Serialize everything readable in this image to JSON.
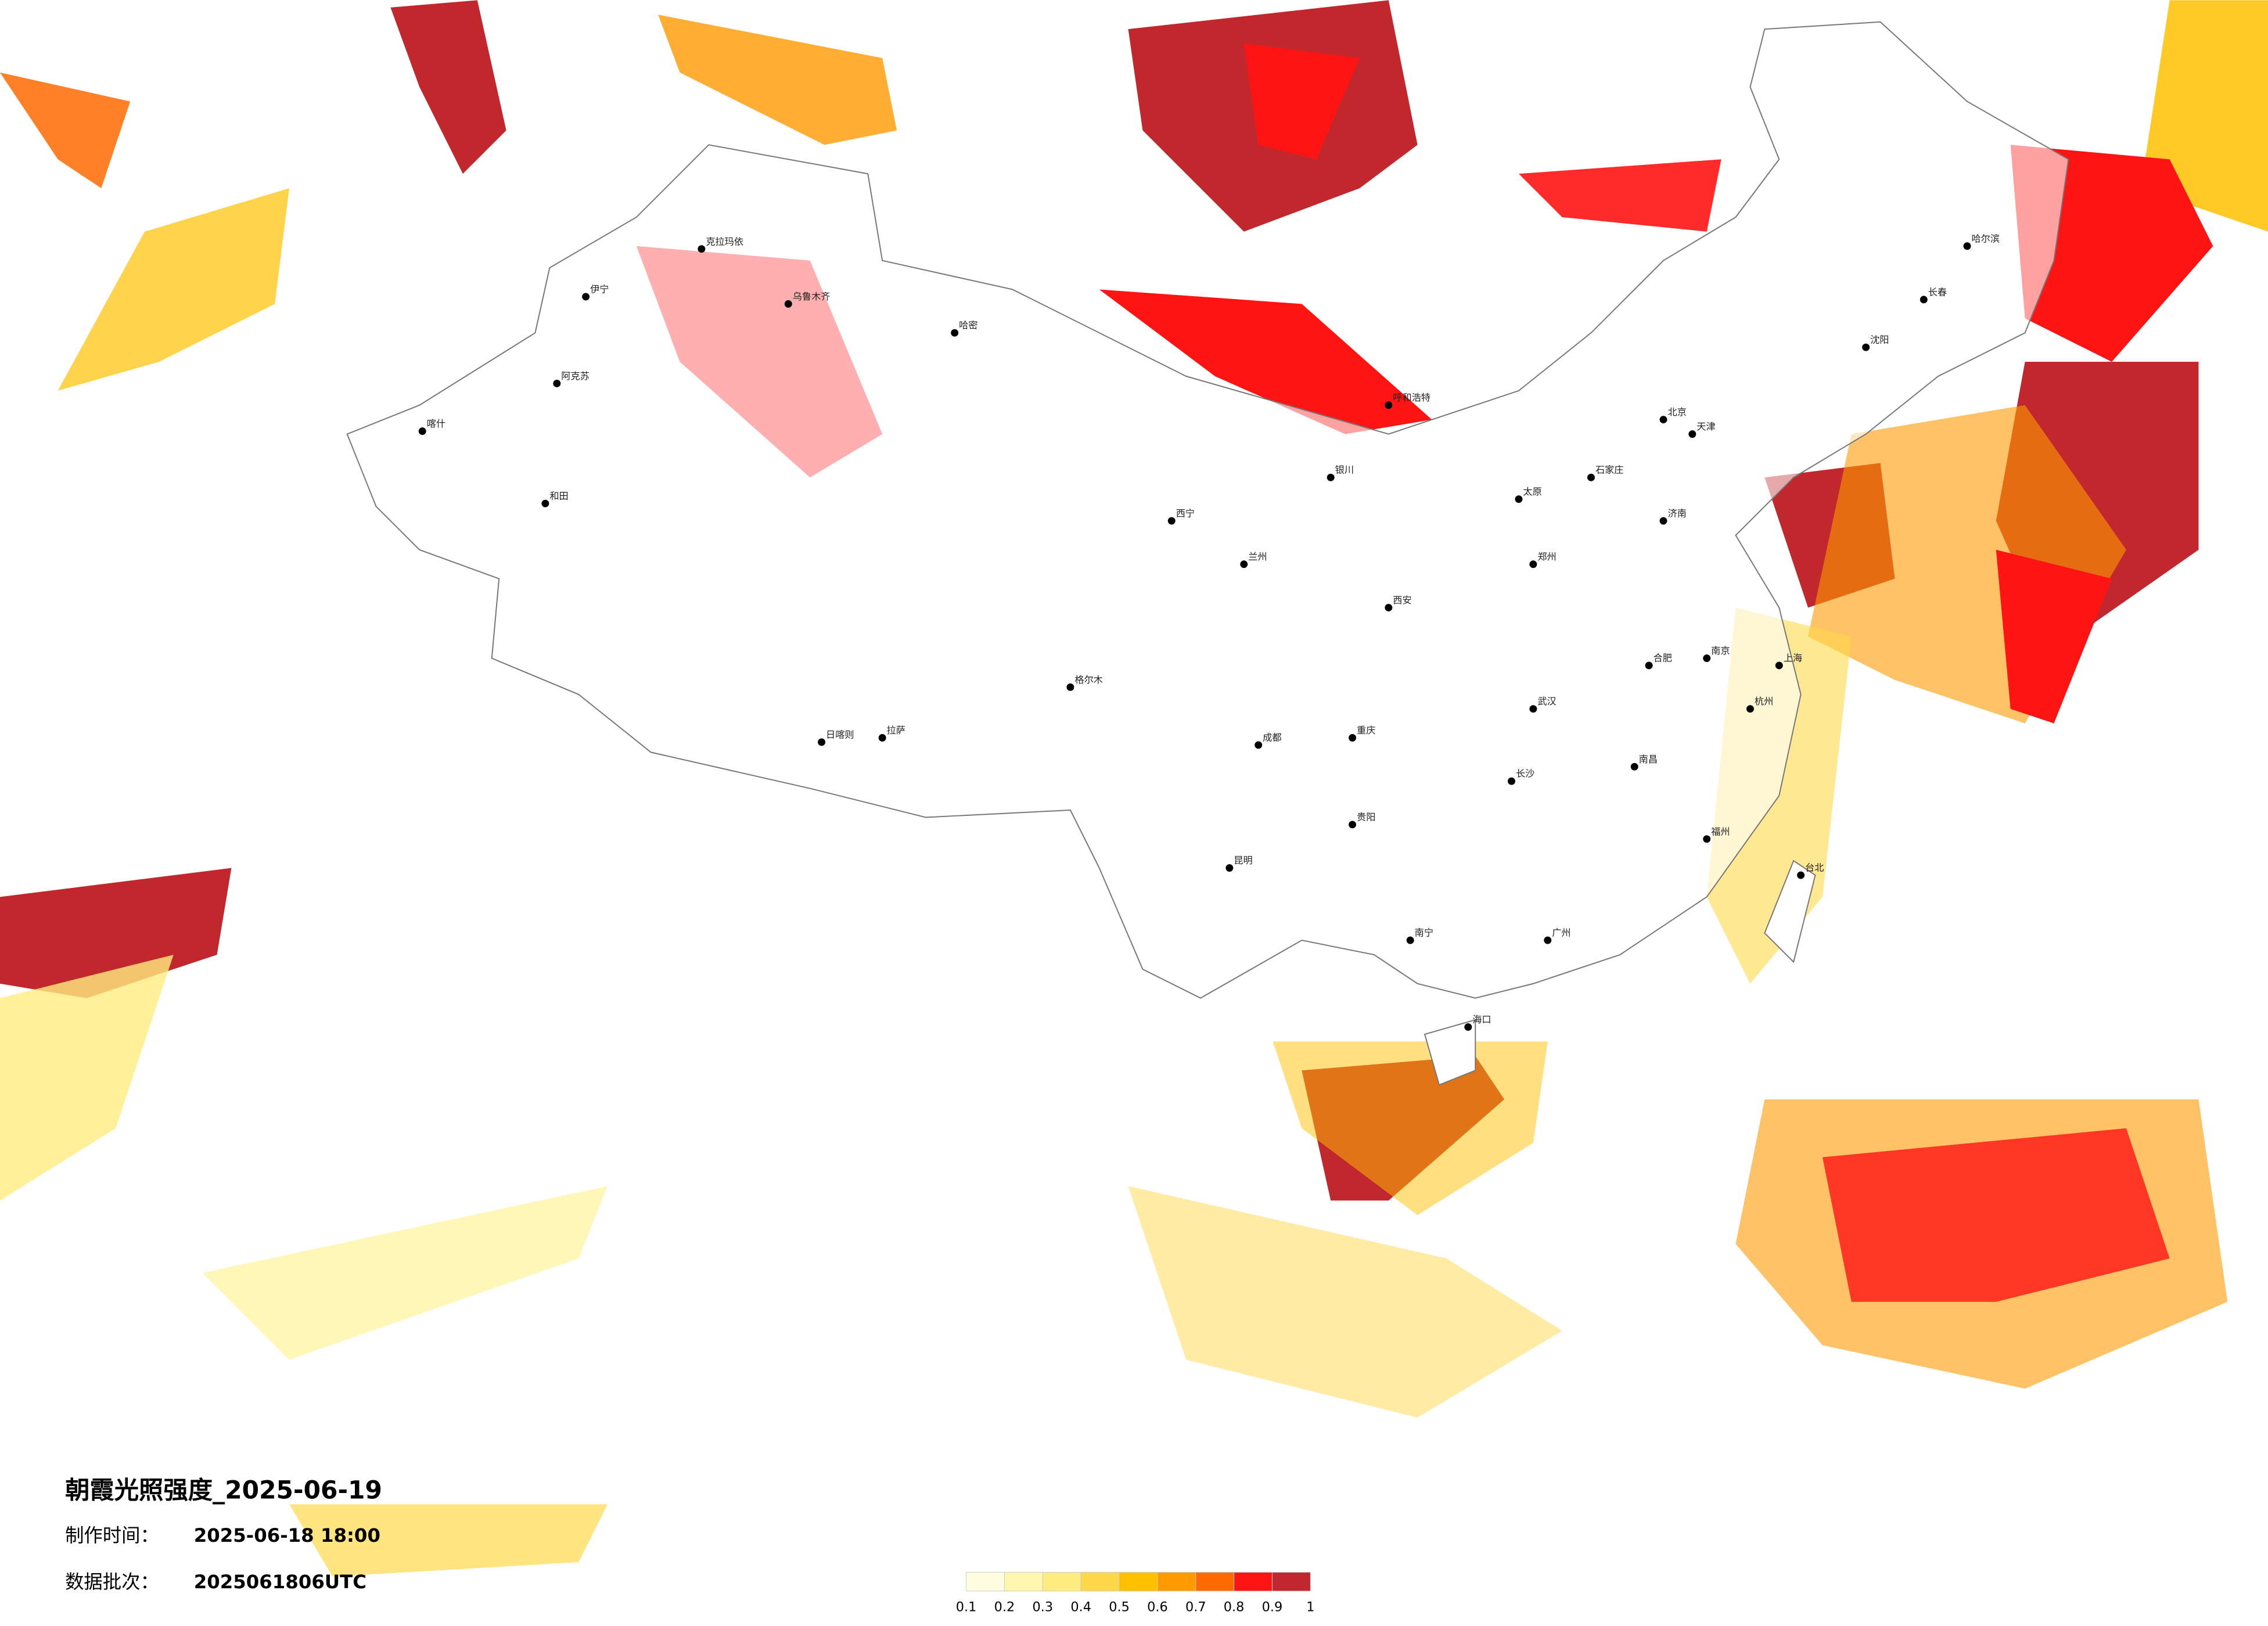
{
  "title": "朝霞光照强度_2025-06-19",
  "made_label": "制作时间：",
  "made_time": "2025-06-18 18:00",
  "batch_label": "数据批次：",
  "batch": "2025061806UTC",
  "legend": {
    "ticks": [
      0.1,
      0.2,
      0.3,
      0.4,
      0.5,
      0.6,
      0.7,
      0.8,
      0.9,
      1
    ],
    "colors": [
      "#fffde0",
      "#fff6b0",
      "#ffec80",
      "#ffd84a",
      "#ffc000",
      "#ff9a00",
      "#ff6a00",
      "#ff1414",
      "#c0282e"
    ]
  },
  "cities": [
    "乌鲁木齐",
    "克拉玛依",
    "伊宁",
    "哈密",
    "阿克苏",
    "喀什",
    "和田",
    "日喀则",
    "拉萨",
    "格尔木",
    "西宁",
    "兰州",
    "银川",
    "成都",
    "重庆",
    "贵阳",
    "昆明",
    "南宁",
    "广州",
    "海口",
    "福州",
    "台北",
    "杭州",
    "南京",
    "合肥",
    "武汉",
    "长沙",
    "南昌",
    "郑州",
    "济南",
    "石家庄",
    "太原",
    "北京",
    "天津",
    "沈阳",
    "长春",
    "哈尔滨",
    "呼和浩特",
    "西安",
    "上海"
  ]
}
